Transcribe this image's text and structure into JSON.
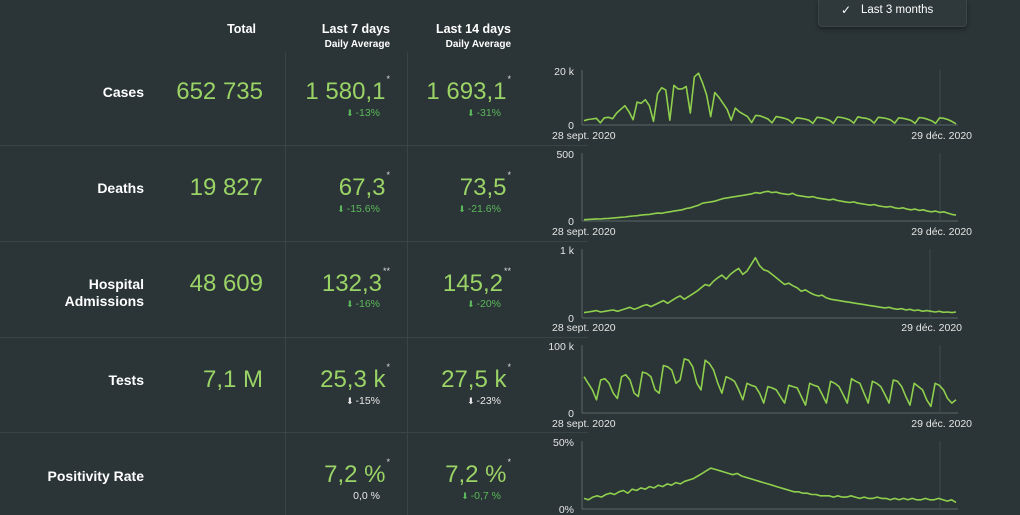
{
  "filter": {
    "check_icon": "check-icon",
    "label": "Last 3 months"
  },
  "headers": {
    "total": "Total",
    "last7": {
      "title": "Last 7 days",
      "sub": "Daily Average"
    },
    "last14": {
      "title": "Last 14 days",
      "sub": "Daily Average"
    }
  },
  "rows": [
    {
      "label_l1": "Cases",
      "label_l2": "",
      "total": "652 735",
      "avg7": "1 580,1",
      "avg7_mark": "*",
      "chg7": "-13%",
      "avg14": "1 693,1",
      "avg14_mark": "*",
      "chg14": "-31%"
    },
    {
      "label_l1": "Deaths",
      "label_l2": "",
      "total": "19 827",
      "avg7": "67,3",
      "avg7_mark": "*",
      "chg7": "-15.6%",
      "avg14": "73,5",
      "avg14_mark": "*",
      "chg14": "-21.6%"
    },
    {
      "label_l1": "Hospital",
      "label_l2": "Admissions",
      "total": "48 609",
      "avg7": "132,3",
      "avg7_mark": "**",
      "chg7": "-16%",
      "avg14": "145,2",
      "avg14_mark": "**",
      "chg14": "-20%"
    },
    {
      "label_l1": "Tests",
      "label_l2": "",
      "total": "7,1 M",
      "avg7": "25,3 k",
      "avg7_mark": "*",
      "chg7": "-15%",
      "avg14": "27,5 k",
      "avg14_mark": "*",
      "chg14": "-23%"
    },
    {
      "label_l1": "Positivity Rate",
      "label_l2": "",
      "total": "",
      "avg7": "7,2 %",
      "avg7_mark": "*",
      "chg7": "0,0 %",
      "avg14": "7,2 %",
      "avg14_mark": "*",
      "chg14": "-0,7 %"
    }
  ],
  "chart_data": [
    {
      "type": "line",
      "title": "Cases",
      "x_start": "28 sept. 2020",
      "x_end": "29 déc. 2020",
      "yticks": [
        "20 k",
        "0"
      ],
      "ylim": [
        0,
        22000
      ],
      "values": [
        1800,
        2300,
        2500,
        2800,
        900,
        3000,
        3200,
        2600,
        5000,
        6500,
        8000,
        5500,
        2200,
        9500,
        9000,
        10500,
        8000,
        1500,
        13000,
        15500,
        14500,
        2000,
        16500,
        15000,
        15000,
        16000,
        5000,
        20000,
        21500,
        17500,
        12500,
        3500,
        13500,
        11500,
        9000,
        6500,
        2000,
        7000,
        5500,
        4500,
        3500,
        1000,
        4000,
        3800,
        3200,
        2500,
        900,
        3500,
        3200,
        2800,
        2200,
        800,
        3000,
        2800,
        2500,
        2000,
        700,
        3200,
        3000,
        2600,
        2000,
        700,
        3300,
        3100,
        2700,
        2100,
        800,
        3400,
        3000,
        2800,
        2200,
        800,
        3200,
        3000,
        2700,
        2100,
        800,
        3000,
        2800,
        2400,
        1900,
        700,
        3100,
        2900,
        2400,
        1800,
        700,
        3000,
        2800,
        2300,
        1500,
        500
      ]
    },
    {
      "type": "line",
      "title": "Deaths",
      "x_start": "28 sept. 2020",
      "x_end": "29 déc. 2020",
      "yticks": [
        "500",
        "0"
      ],
      "ylim": [
        0,
        500
      ],
      "values": [
        10,
        12,
        14,
        16,
        15,
        18,
        20,
        22,
        25,
        28,
        30,
        35,
        38,
        40,
        45,
        48,
        50,
        55,
        60,
        58,
        65,
        70,
        75,
        80,
        85,
        95,
        100,
        110,
        120,
        135,
        140,
        145,
        150,
        160,
        170,
        175,
        180,
        185,
        190,
        195,
        200,
        205,
        215,
        210,
        220,
        225,
        215,
        220,
        210,
        205,
        200,
        210,
        195,
        190,
        185,
        180,
        185,
        175,
        170,
        165,
        160,
        165,
        155,
        150,
        145,
        140,
        145,
        135,
        130,
        125,
        120,
        125,
        115,
        110,
        105,
        110,
        100,
        95,
        100,
        90,
        85,
        90,
        80,
        85,
        75,
        70,
        75,
        65,
        70,
        60,
        50,
        45
      ]
    },
    {
      "type": "line",
      "title": "Hospital Admissions",
      "x_start": "28 sept. 2020",
      "x_end": "29 déc. 2020",
      "yticks": [
        "1 k",
        "0"
      ],
      "ylim": [
        0,
        1000
      ],
      "values": [
        80,
        90,
        100,
        110,
        90,
        100,
        110,
        120,
        100,
        120,
        140,
        160,
        130,
        150,
        180,
        200,
        170,
        200,
        230,
        260,
        220,
        260,
        300,
        330,
        280,
        320,
        360,
        400,
        450,
        500,
        480,
        550,
        600,
        640,
        580,
        650,
        700,
        740,
        650,
        700,
        800,
        900,
        780,
        720,
        700,
        650,
        600,
        550,
        500,
        520,
        480,
        450,
        400,
        420,
        380,
        350,
        330,
        340,
        300,
        280,
        270,
        260,
        250,
        240,
        230,
        220,
        210,
        200,
        190,
        180,
        170,
        160,
        150,
        160,
        140,
        130,
        140,
        120,
        130,
        110,
        120,
        100,
        110,
        100,
        90,
        100,
        85,
        90,
        80,
        90
      ]
    },
    {
      "type": "line",
      "title": "Tests",
      "x_start": "28 sept. 2020",
      "x_end": "29 déc. 2020",
      "yticks": [
        "100 k",
        "0"
      ],
      "ylim": [
        0,
        100000
      ],
      "values": [
        55000,
        45000,
        35000,
        20000,
        50000,
        52000,
        45000,
        30000,
        22000,
        55000,
        58000,
        50000,
        30000,
        25000,
        62000,
        60000,
        55000,
        35000,
        30000,
        72000,
        70000,
        65000,
        45000,
        50000,
        82000,
        80000,
        70000,
        45000,
        35000,
        80000,
        75000,
        65000,
        45000,
        30000,
        55000,
        52000,
        48000,
        35000,
        20000,
        45000,
        42000,
        40000,
        30000,
        15000,
        40000,
        38000,
        35000,
        25000,
        15000,
        42000,
        40000,
        38000,
        25000,
        12000,
        45000,
        42000,
        40000,
        28000,
        15000,
        48000,
        45000,
        40000,
        28000,
        15000,
        52000,
        48000,
        45000,
        30000,
        15000,
        48000,
        45000,
        40000,
        28000,
        15000,
        50000,
        48000,
        40000,
        25000,
        12000,
        45000,
        40000,
        35000,
        20000,
        10000,
        45000,
        42000,
        35000,
        22000,
        15000,
        20000
      ]
    },
    {
      "type": "line",
      "title": "Positivity Rate",
      "x_start": "",
      "x_end": "",
      "yticks": [
        "50%",
        "0%"
      ],
      "ylim": [
        0,
        50
      ],
      "values": [
        8,
        7,
        9,
        10,
        9,
        11,
        12,
        11,
        13,
        14,
        12,
        15,
        14,
        16,
        15,
        17,
        16,
        18,
        17,
        19,
        18,
        20,
        19,
        21,
        22,
        23,
        25,
        27,
        29,
        31,
        30,
        29,
        28,
        27,
        26,
        27,
        25,
        24,
        23,
        22,
        21,
        20,
        19,
        18,
        17,
        16,
        15,
        14,
        13,
        13,
        12,
        12,
        11,
        11,
        10,
        10,
        10,
        9,
        10,
        9,
        9,
        10,
        9,
        8,
        9,
        8,
        8,
        9,
        8,
        8,
        7,
        8,
        7,
        8,
        7,
        8,
        7,
        7,
        8,
        7,
        7,
        8,
        7,
        6,
        7,
        5
      ]
    }
  ]
}
